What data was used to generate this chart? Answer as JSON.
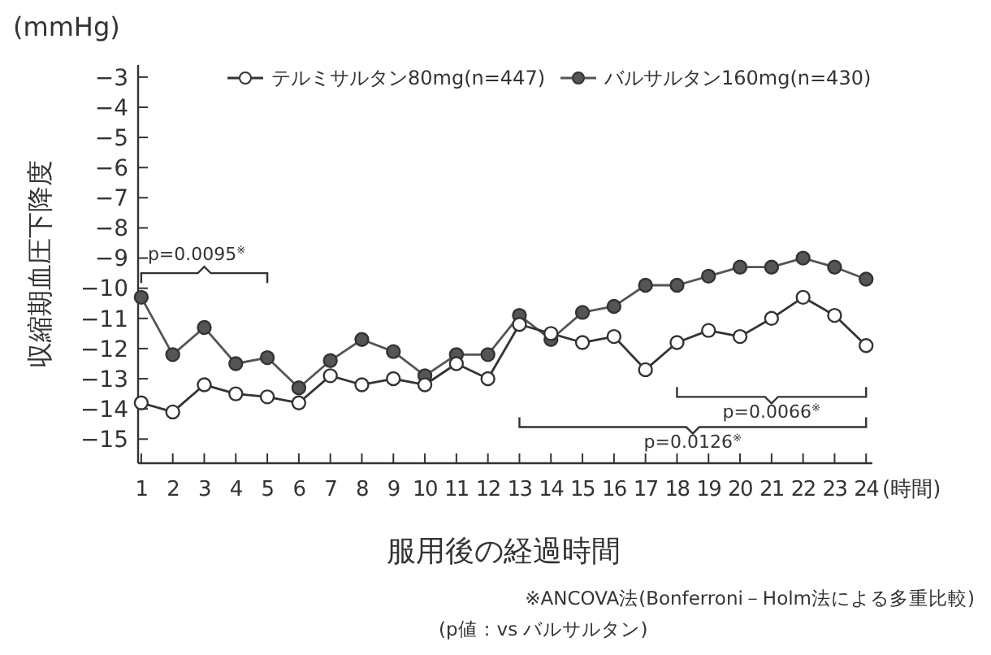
{
  "chart_data": {
    "type": "line",
    "ylabel": "収縮期血圧下降度",
    "xlabel": "服用後の経過時間",
    "x": [
      1,
      2,
      3,
      4,
      5,
      6,
      7,
      8,
      9,
      10,
      11,
      12,
      13,
      14,
      15,
      16,
      17,
      18,
      19,
      20,
      21,
      22,
      23,
      24
    ],
    "series": [
      {
        "name": "テルミサルタン80mg(n=447)",
        "color": "#333333",
        "values": [
          -13.8,
          -14.1,
          -13.2,
          -13.5,
          -13.6,
          -13.8,
          -12.9,
          -13.2,
          -13.0,
          -13.2,
          -12.5,
          -13.0,
          -11.2,
          -11.5,
          -11.8,
          -11.6,
          -12.7,
          -11.8,
          -11.4,
          -11.6,
          -11.0,
          -10.3,
          -10.9,
          -11.9
        ]
      },
      {
        "name": "バルサルタン160mg(n=430)",
        "color": "#555555",
        "values": [
          -10.3,
          -12.2,
          -11.3,
          -12.5,
          -12.3,
          -13.3,
          -12.4,
          -11.7,
          -12.1,
          -12.9,
          -12.2,
          -12.2,
          -10.9,
          -11.7,
          -10.8,
          -10.6,
          -9.9,
          -9.9,
          -9.6,
          -9.3,
          -9.3,
          -9.0,
          -9.3,
          -9.7
        ]
      }
    ],
    "xlim": [
      0.9,
      24.2
    ],
    "xticks": [
      1,
      2,
      3,
      4,
      5,
      6,
      7,
      8,
      9,
      10,
      11,
      12,
      13,
      14,
      15,
      16,
      17,
      18,
      19,
      20,
      21,
      22,
      23,
      24
    ],
    "ylim": [
      -15.8,
      -2.6
    ],
    "yticks": [
      -3,
      -4,
      -5,
      -6,
      -7,
      -8,
      -9,
      -10,
      -11,
      -12,
      -13,
      -14,
      -15
    ],
    "annotations": [
      "(mmHg)",
      "(時間)",
      "p=0.0095$^{※}$",
      "p=0.0066$^{※}$",
      "p=0.0126$^{※}$",
      "※ANCOVA法(Bonferroni－Holm法による多重比較)",
      "(p値：vs バルサルタン)"
    ],
    "marker": "circle",
    "legend": "top",
    "grid": false
  }
}
